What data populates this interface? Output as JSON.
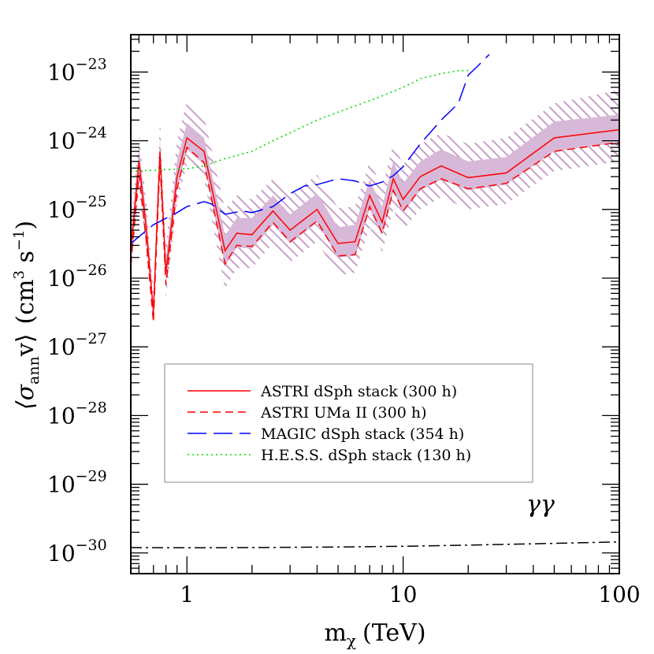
{
  "chart_data": {
    "type": "line",
    "xlabel": "m",
    "xlabel_sub": "χ",
    "xlabel_unit": "(TeV)",
    "ylabel_parts": {
      "open": "⟨σ",
      "sub": "ann",
      "v": "v⟩",
      "unit": "(cm",
      "unit_sup": "3",
      "unit_mid": " s",
      "unit_sup2": "−1",
      "close": ")"
    },
    "x_scale": "log",
    "y_scale": "log",
    "xlim": [
      0.55,
      100
    ],
    "ylim": [
      5e-31,
      3.5e-23
    ],
    "x_ticks": [
      {
        "value": 1,
        "label": "1"
      },
      {
        "value": 10,
        "label": "10"
      },
      {
        "value": 100,
        "label": "100"
      }
    ],
    "y_ticks": [
      {
        "value": 1e-30,
        "mantissa": "10",
        "exponent": "−30"
      },
      {
        "value": 1e-29,
        "mantissa": "10",
        "exponent": "−29"
      },
      {
        "value": 1e-28,
        "mantissa": "10",
        "exponent": "−28"
      },
      {
        "value": 1e-27,
        "mantissa": "10",
        "exponent": "−27"
      },
      {
        "value": 1e-26,
        "mantissa": "10",
        "exponent": "−26"
      },
      {
        "value": 1e-25,
        "mantissa": "10",
        "exponent": "−25"
      },
      {
        "value": 1e-24,
        "mantissa": "10",
        "exponent": "−24"
      },
      {
        "value": 1e-23,
        "mantissa": "10",
        "exponent": "−23"
      }
    ],
    "annotation": "γγ",
    "legend_position": "lower-middle",
    "series": [
      {
        "name": "ASTRI dSph stack (300 h)",
        "color": "#ff0000",
        "style": "solid",
        "x": [
          0.55,
          0.6,
          0.65,
          0.7,
          0.75,
          0.8,
          0.9,
          1.0,
          1.2,
          1.5,
          1.7,
          2.0,
          2.5,
          3.0,
          4.0,
          5.0,
          6.0,
          7.0,
          8.0,
          9.0,
          10.0,
          12.0,
          15.0,
          20.0,
          30.0,
          50.0,
          100.0
        ],
        "y": [
          2.5e-26,
          5e-25,
          5e-26,
          3.2e-27,
          7e-25,
          1.2e-26,
          3e-25,
          1.1e-24,
          7e-25,
          2.5e-26,
          4.5e-26,
          4.3e-26,
          9.5e-26,
          5e-26,
          1e-25,
          3.2e-26,
          3.4e-26,
          1.6e-25,
          6.5e-26,
          2.8e-25,
          1.4e-25,
          3e-25,
          4.3e-25,
          2.9e-25,
          3.4e-25,
          1.1e-24,
          1.45e-24
        ]
      },
      {
        "name": "ASTRI UMa II (300 h)",
        "color": "#ff0000",
        "style": "dashed",
        "x": [
          0.55,
          0.6,
          0.65,
          0.7,
          0.75,
          0.8,
          0.9,
          1.0,
          1.2,
          1.5,
          1.7,
          2.0,
          2.5,
          3.0,
          4.0,
          5.0,
          6.0,
          7.0,
          8.0,
          9.0,
          10.0,
          12.0,
          15.0,
          20.0,
          30.0,
          50.0,
          100.0
        ],
        "y": [
          1.6e-26,
          3.2e-25,
          3.2e-26,
          2.3e-27,
          5e-25,
          8e-27,
          2e-25,
          8e-25,
          4.8e-25,
          1.6e-26,
          3e-26,
          2.9e-26,
          6.5e-26,
          3.4e-26,
          6.8e-26,
          2.1e-26,
          2.2e-26,
          1.1e-25,
          4.5e-26,
          1.9e-25,
          9.5e-26,
          2e-25,
          2.8e-25,
          2e-25,
          2.4e-25,
          7e-25,
          9.5e-25
        ]
      },
      {
        "name": "MAGIC dSph stack (354 h)",
        "color": "#0000ff",
        "style": "longdash",
        "x": [
          0.55,
          0.7,
          0.9,
          1.0,
          1.2,
          1.3,
          1.5,
          1.8,
          2.0,
          2.5,
          3.0,
          3.5,
          4.0,
          5.0,
          6.0,
          7.0,
          8.0,
          9.0,
          10.0,
          12.0,
          15.0,
          18.0,
          20.0,
          22.0,
          25.0
        ],
        "y": [
          3.2e-26,
          6e-26,
          9e-26,
          1.1e-25,
          1.3e-25,
          1.2e-25,
          8.5e-26,
          9.5e-26,
          9e-26,
          1.1e-25,
          1.7e-25,
          2.2e-25,
          2.3e-25,
          2.8e-25,
          2.6e-25,
          2.2e-25,
          2.5e-25,
          3.1e-25,
          4.2e-25,
          9e-25,
          2e-24,
          3.5e-24,
          9e-24,
          1.2e-23,
          1.8e-23
        ]
      },
      {
        "name": "H.E.S.S. dSph stack (130 h)",
        "color": "#00dd00",
        "style": "dotted",
        "x": [
          0.55,
          0.8,
          1.0,
          1.2,
          1.5,
          2.0,
          2.5,
          3.0,
          4.0,
          5.0,
          6.0,
          8.0,
          10.0,
          12.0,
          15.0,
          18.0,
          20.0
        ],
        "y": [
          3.6e-25,
          3.8e-25,
          3.9e-25,
          4.3e-25,
          5.5e-25,
          7e-25,
          1e-24,
          1.3e-24,
          2e-24,
          2.6e-24,
          3.2e-24,
          4.5e-24,
          6e-24,
          8e-24,
          9.5e-24,
          1.05e-23,
          1.05e-23
        ]
      },
      {
        "name": "",
        "color": "#000000",
        "style": "dashdot",
        "x": [
          0.55,
          1,
          2,
          5,
          10,
          20,
          50,
          100
        ],
        "y": [
          1.2e-30,
          1.19e-30,
          1.2e-30,
          1.22e-30,
          1.25e-30,
          1.3e-30,
          1.38e-30,
          1.45e-30
        ]
      }
    ],
    "bands": [
      {
        "role": "outer-hatched",
        "color": "#c8a0c8",
        "x": [
          0.55,
          0.6,
          0.65,
          0.7,
          0.75,
          0.8,
          0.9,
          1.0,
          1.2,
          1.5,
          1.7,
          2.0,
          2.5,
          3.0,
          4.0,
          5.0,
          6.0,
          7.0,
          8.0,
          9.0,
          10.0,
          12.0,
          15.0,
          20.0,
          30.0,
          50.0,
          100.0
        ],
        "y_low": [
          1e-26,
          2e-25,
          2e-26,
          2.5e-27,
          3e-25,
          5e-27,
          1.2e-25,
          4.5e-25,
          2.8e-25,
          7e-27,
          1.4e-26,
          1.4e-26,
          3.2e-26,
          1.7e-26,
          3.4e-26,
          1.1e-26,
          1.2e-26,
          5.5e-26,
          2.4e-26,
          1e-25,
          5e-26,
          1e-25,
          1.5e-25,
          1e-25,
          1.2e-25,
          3.6e-25,
          5e-25
        ],
        "y_high": [
          6e-26,
          1.2e-24,
          1.2e-25,
          7e-27,
          2.2e-24,
          3e-26,
          1e-24,
          3.8e-24,
          2.2e-24,
          1e-25,
          1.6e-25,
          1.4e-25,
          2.8e-25,
          1.6e-25,
          3.2e-25,
          1.05e-25,
          1.1e-25,
          5e-25,
          2.1e-25,
          9e-25,
          4.5e-25,
          9e-25,
          1.3e-24,
          9e-25,
          1.1e-24,
          3.5e-24,
          5.5e-24
        ]
      },
      {
        "role": "inner-filled",
        "color": "#d8b8d8",
        "x": [
          0.55,
          0.6,
          0.65,
          0.7,
          0.75,
          0.8,
          0.9,
          1.0,
          1.2,
          1.5,
          1.7,
          2.0,
          2.5,
          3.0,
          4.0,
          5.0,
          6.0,
          7.0,
          8.0,
          9.0,
          10.0,
          12.0,
          15.0,
          20.0,
          30.0,
          50.0,
          100.0
        ],
        "y_low": [
          1.6e-26,
          3.2e-25,
          3.2e-26,
          2.7e-27,
          4.7e-25,
          8e-27,
          1.9e-25,
          7.5e-25,
          4.5e-25,
          1.5e-26,
          2.8e-26,
          2.7e-26,
          6e-26,
          3.2e-26,
          6.5e-26,
          2e-26,
          2.1e-26,
          1e-25,
          4.2e-26,
          1.8e-25,
          9e-26,
          1.9e-25,
          2.7e-25,
          1.9e-25,
          2.3e-25,
          7e-25,
          9.5e-25
        ],
        "y_high": [
          3.8e-26,
          8e-25,
          8e-26,
          4e-27,
          1.1e-24,
          1.9e-26,
          5.2e-25,
          1.8e-24,
          1.1e-24,
          4.2e-26,
          7.5e-26,
          7.5e-26,
          1.6e-25,
          8.5e-26,
          1.7e-25,
          5.5e-26,
          6e-26,
          2.7e-25,
          1.1e-25,
          5e-25,
          2.4e-25,
          5e-25,
          7.5e-25,
          5e-25,
          5.8e-25,
          1.9e-24,
          2.4e-24
        ]
      }
    ]
  }
}
